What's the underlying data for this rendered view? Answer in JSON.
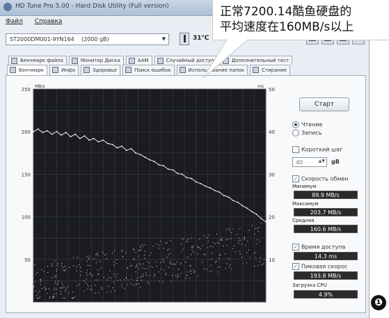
{
  "window": {
    "title": "HD Tune Pro 5.00 - Hard Disk Utility (Full version)"
  },
  "menu": [
    "Файл",
    "Справка"
  ],
  "toolbar": {
    "drive": "ST2000DM001-9YN164",
    "capacity": "(2000 gB)",
    "temperature": "31℃"
  },
  "tabs_row1": [
    {
      "label": "Бенчмарк файла",
      "icon": "file-benchmark-icon"
    },
    {
      "label": "Монитор Диска",
      "icon": "disk-monitor-icon"
    },
    {
      "label": "AAM",
      "icon": "speaker-icon"
    },
    {
      "label": "Случайный доступ",
      "icon": "random-access-icon"
    },
    {
      "label": "Дополнительный тест",
      "icon": "extra-test-icon"
    }
  ],
  "tabs_row2": [
    {
      "label": "Бенчмарк",
      "icon": "benchmark-icon",
      "active": true
    },
    {
      "label": "Инфо",
      "icon": "info-icon"
    },
    {
      "label": "Здоровье",
      "icon": "health-icon"
    },
    {
      "label": "Поиск ошибок",
      "icon": "error-scan-icon"
    },
    {
      "label": "Использование папок",
      "icon": "folder-usage-icon"
    },
    {
      "label": "Стирание",
      "icon": "erase-icon"
    }
  ],
  "side": {
    "start_label": "Старт",
    "read_label": "Чтение",
    "write_label": "Запись",
    "short_stroke_label": "Короткий шаг",
    "short_stroke_value": "40",
    "short_stroke_unit": "gB",
    "transfer_rate_label": "Скорость обмен",
    "min_label": "Минимум",
    "min_value": "89.9 MB/s",
    "max_label": "Максимум",
    "max_value": "203.7 MB/s",
    "avg_label": "Средняя",
    "avg_value": "160.6 MB/s",
    "access_time_label": "Время доступа",
    "access_time_value": "14.3 ms",
    "burst_label": "Пиковая скорос",
    "burst_value": "193.8 MB/s",
    "cpu_label": "Загрузка CPU",
    "cpu_value": "4.9%"
  },
  "chart_data": {
    "type": "line",
    "y_left_unit": "MB/s",
    "y_right_unit": "ms",
    "ylim_left": [
      0,
      250
    ],
    "ylim_right": [
      0,
      50
    ],
    "yticks_left": [
      50,
      100,
      150,
      200,
      250
    ],
    "yticks_right": [
      10,
      20,
      30,
      40,
      50
    ],
    "grid": true,
    "series": [
      {
        "kind": "transfer_rate_line",
        "x": [
          0,
          2,
          4,
          6,
          8,
          10,
          12,
          14,
          16,
          18,
          20,
          22,
          24,
          26,
          28,
          30,
          32,
          34,
          36,
          38,
          40,
          42,
          44,
          46,
          48,
          50,
          52,
          54,
          56,
          58,
          60,
          62,
          64,
          66,
          68,
          70,
          72,
          74,
          76,
          78,
          80,
          82,
          84,
          86,
          88,
          90,
          92,
          94,
          96,
          98,
          100
        ],
        "values": [
          200,
          203,
          199,
          201,
          197,
          200,
          196,
          199,
          194,
          197,
          192,
          195,
          190,
          192,
          188,
          190,
          186,
          185,
          181,
          183,
          178,
          180,
          175,
          173,
          170,
          167,
          165,
          161,
          160,
          156,
          155,
          151,
          150,
          146,
          145,
          141,
          139,
          136,
          134,
          131,
          129,
          125,
          123,
          119,
          117,
          113,
          110,
          106,
          103,
          98,
          94
        ]
      }
    ],
    "scatter_note": "access time points dispersed between about 5 and 18 ms rising across the disk"
  },
  "callout": {
    "line1": "正常7200.14酷鱼硬盘的",
    "line2": "平均速度在160MB/s以上"
  },
  "marker": "❶"
}
